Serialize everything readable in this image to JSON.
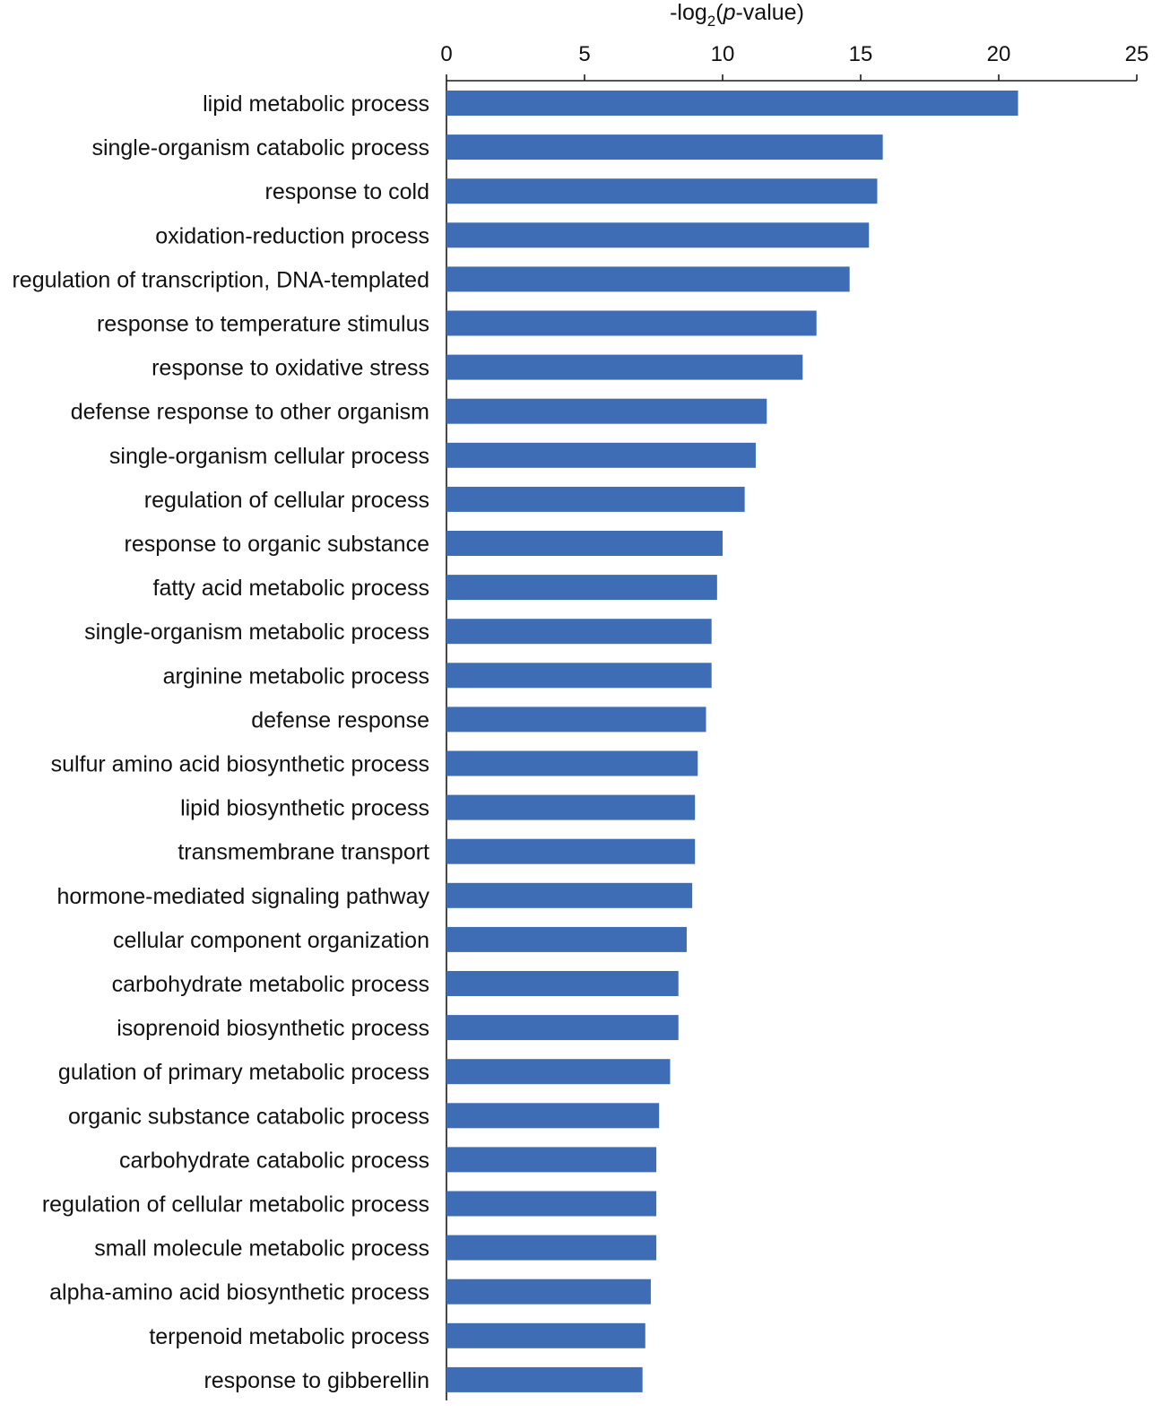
{
  "chart_data": {
    "type": "bar",
    "orientation": "horizontal",
    "title": "",
    "xlabel": "-log2(p-value)",
    "xlabel_parts": {
      "prefix": "-log",
      "subscript": "2",
      "open": "(",
      "italic": "p",
      "suffix": "-value)"
    },
    "ylabel": "",
    "xlim": [
      0,
      25
    ],
    "xticks": [
      0,
      5,
      10,
      15,
      20,
      25
    ],
    "xaxis_position": "top",
    "grid": false,
    "bar_color": "#3f6db5",
    "categories": [
      "lipid metabolic process",
      "single-organism catabolic process",
      "response to cold",
      "oxidation-reduction process",
      "regulation of transcription, DNA-templated",
      "response to temperature stimulus",
      "response to oxidative stress",
      "defense response to other organism",
      "single-organism cellular process",
      "regulation of cellular process",
      "response to organic substance",
      "fatty acid metabolic process",
      "single-organism metabolic process",
      "arginine metabolic process",
      "defense response",
      "sulfur amino acid biosynthetic process",
      "lipid biosynthetic process",
      "transmembrane transport",
      "hormone-mediated signaling pathway",
      "cellular component organization",
      "carbohydrate metabolic process",
      "isoprenoid biosynthetic process",
      "gulation of primary metabolic process",
      "organic substance catabolic process",
      "carbohydrate catabolic process",
      "regulation of cellular metabolic process",
      "small molecule metabolic process",
      "alpha-amino acid biosynthetic process",
      "terpenoid metabolic process",
      "response to gibberellin"
    ],
    "values": [
      20.7,
      15.8,
      15.6,
      15.3,
      14.6,
      13.4,
      12.9,
      11.6,
      11.2,
      10.8,
      10.0,
      9.8,
      9.6,
      9.6,
      9.4,
      9.1,
      9.0,
      9.0,
      8.9,
      8.7,
      8.4,
      8.4,
      8.1,
      7.7,
      7.6,
      7.6,
      7.6,
      7.4,
      7.2,
      7.1
    ]
  }
}
